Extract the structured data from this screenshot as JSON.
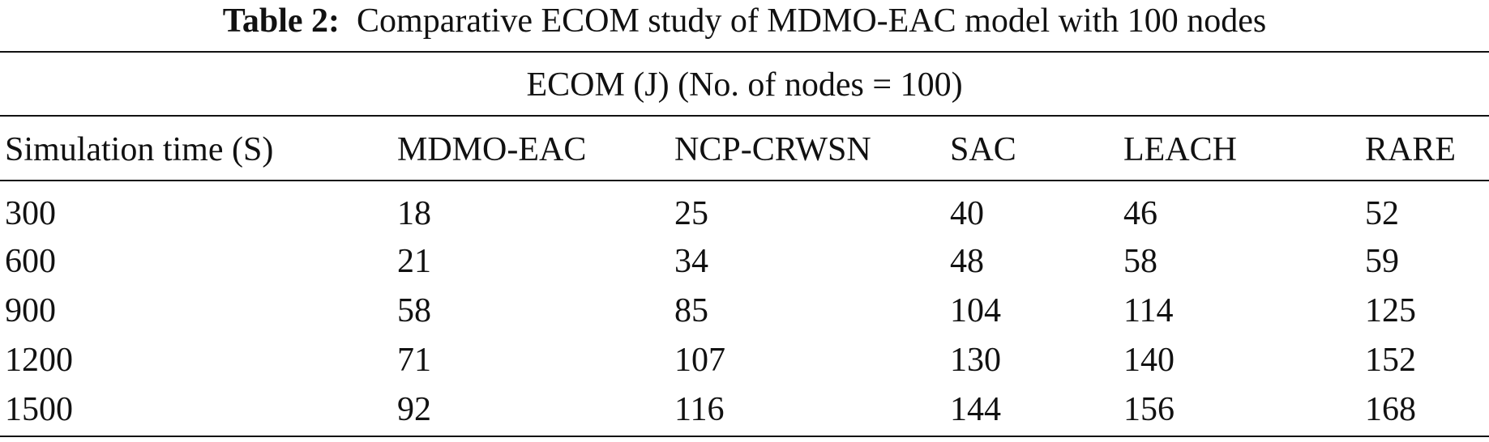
{
  "caption": {
    "label": "Table 2:",
    "text": "Comparative ECOM study of MDMO-EAC model with 100 nodes"
  },
  "table": {
    "group_header": "ECOM (J) (No. of nodes = 100)",
    "columns": [
      "Simulation time (S)",
      "MDMO-EAC",
      "NCP-CRWSN",
      "SAC",
      "LEACH",
      "RARE"
    ],
    "rows": [
      [
        300,
        18,
        25,
        40,
        46,
        52
      ],
      [
        600,
        21,
        34,
        48,
        58,
        59
      ],
      [
        900,
        58,
        85,
        104,
        114,
        125
      ],
      [
        1200,
        71,
        107,
        130,
        140,
        152
      ],
      [
        1500,
        92,
        116,
        144,
        156,
        168
      ]
    ]
  }
}
